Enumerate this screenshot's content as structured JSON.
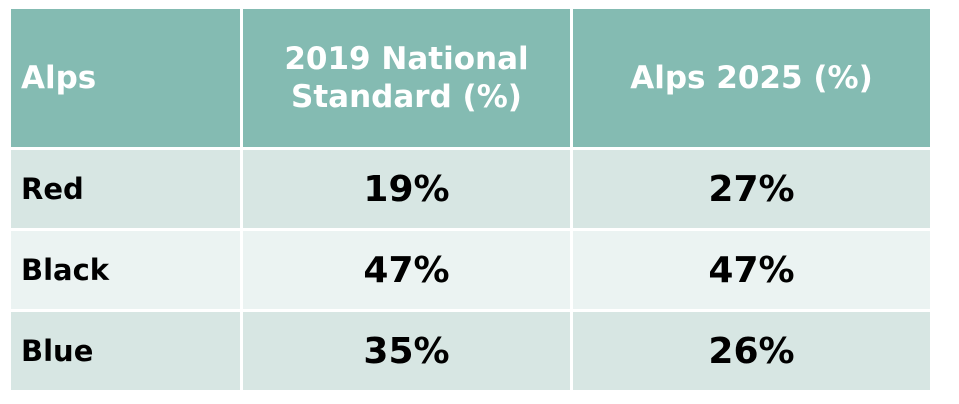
{
  "table": {
    "headers": [
      "Alps",
      "2019 National Standard (%)",
      "Alps 2025 (%)"
    ],
    "header_lines": {
      "col2_line1": "2019 National",
      "col2_line2": "Standard (%)"
    },
    "rows": [
      {
        "label": "Red",
        "national_2019": "19%",
        "alps_2025": "27%"
      },
      {
        "label": "Black",
        "national_2019": "47%",
        "alps_2025": "47%"
      },
      {
        "label": "Blue",
        "national_2019": "35%",
        "alps_2025": "26%"
      }
    ],
    "colors": {
      "header_bg": "#84bbb2",
      "row_odd_bg": "#d7e6e3",
      "row_even_bg": "#ebf3f2",
      "header_text": "#ffffff",
      "body_text": "#000000"
    }
  }
}
